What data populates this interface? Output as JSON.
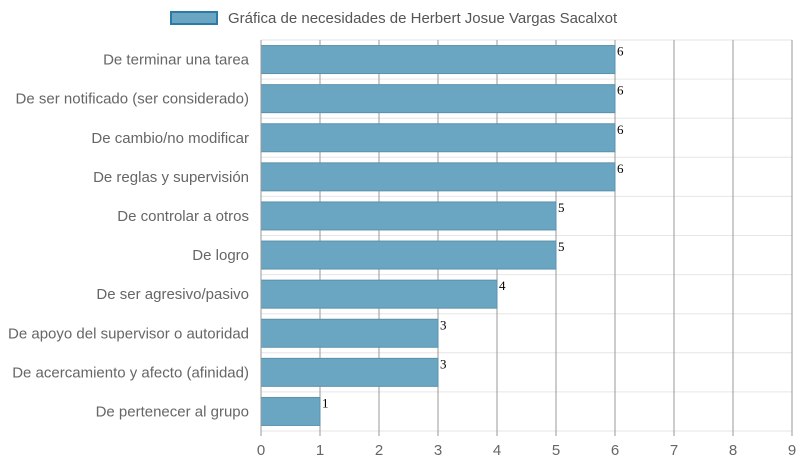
{
  "colors": {
    "bar_fill": "#6aa5c2",
    "bar_stroke": "#5b92ad",
    "grid_major": "#999999",
    "grid_minor": "#e6e6e6",
    "axis_text": "#666666",
    "value_text": "#000000",
    "legend_border": "#2d7aa6"
  },
  "chart_data": {
    "type": "bar",
    "orientation": "horizontal",
    "legend_position": "top",
    "grid": true,
    "categories": [
      "De terminar una tarea",
      "De ser notificado (ser considerado)",
      "De cambio/no modificar",
      "De reglas y supervisión",
      "De controlar a otros",
      "De logro",
      "De ser agresivo/pasivo",
      "De apoyo del supervisor o autoridad",
      "De acercamiento y afecto (afinidad)",
      "De pertenecer al grupo"
    ],
    "series": [
      {
        "name": "Gráfica de necesidades de Herbert Josue Vargas Sacalxot",
        "values": [
          6,
          6,
          6,
          6,
          5,
          5,
          4,
          3,
          3,
          1
        ]
      }
    ],
    "xlim": [
      0,
      9
    ],
    "xticks": [
      "0",
      "1",
      "2",
      "3",
      "4",
      "5",
      "6",
      "7",
      "8",
      "9"
    ],
    "data_labels": [
      "6",
      "6",
      "6",
      "6",
      "5",
      "5",
      "4",
      "3",
      "3",
      "1"
    ]
  }
}
